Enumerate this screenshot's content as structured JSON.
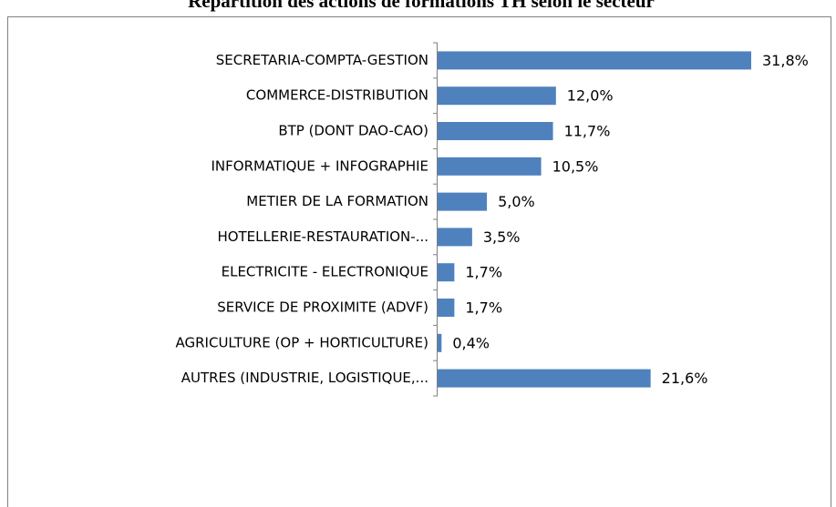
{
  "chart_data": {
    "type": "bar",
    "orientation": "horizontal",
    "title": "Répartition des actions de formations TH selon le secteur",
    "categories": [
      "SECRETARIA-COMPTA-GESTION",
      "COMMERCE-DISTRIBUTION",
      "BTP (DONT DAO-CAO)",
      "INFORMATIQUE + INFOGRAPHIE",
      "METIER DE LA FORMATION",
      "HOTELLERIE-RESTAURATION-...",
      "ELECTRICITE - ELECTRONIQUE",
      "SERVICE DE PROXIMITE (ADVF)",
      "AGRICULTURE (OP + HORTICULTURE)",
      "AUTRES (INDUSTRIE, LOGISTIQUE,..."
    ],
    "values": [
      31.8,
      12.0,
      11.7,
      10.5,
      5.0,
      3.5,
      1.7,
      1.7,
      0.4,
      21.6
    ],
    "value_labels": [
      "31,8%",
      "12,0%",
      "11,7%",
      "10,5%",
      "5,0%",
      "3,5%",
      "1,7%",
      "1,7%",
      "0,4%",
      "21,6%"
    ],
    "color": "#4f81bd"
  }
}
